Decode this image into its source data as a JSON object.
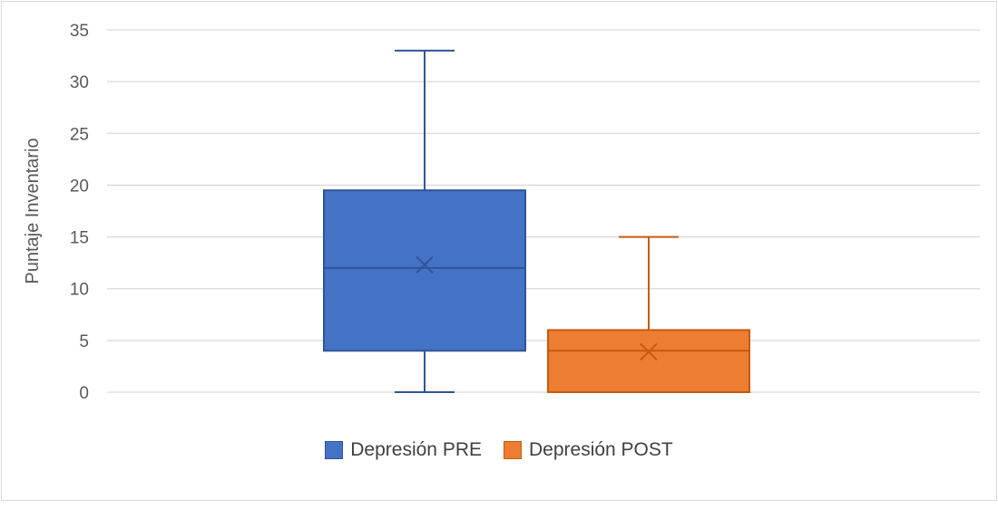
{
  "chart_data": {
    "type": "boxplot",
    "ylabel": "Puntaje Inventario",
    "ylim": [
      0,
      35
    ],
    "yticks": [
      0,
      5,
      10,
      15,
      20,
      25,
      30,
      35
    ],
    "grid": true,
    "legend_position": "bottom",
    "series": [
      {
        "name": "Depresión PRE",
        "color": "#4472c4",
        "border": "#2f5597",
        "min": 0,
        "q1": 4,
        "median": 12,
        "q3": 19.5,
        "max": 33,
        "mean": 12.3
      },
      {
        "name": "Depresión POST",
        "color": "#ed7d31",
        "border": "#c55a11",
        "min": 0,
        "q1": 0,
        "median": 4,
        "q3": 6,
        "max": 15,
        "mean": 3.9
      }
    ]
  }
}
